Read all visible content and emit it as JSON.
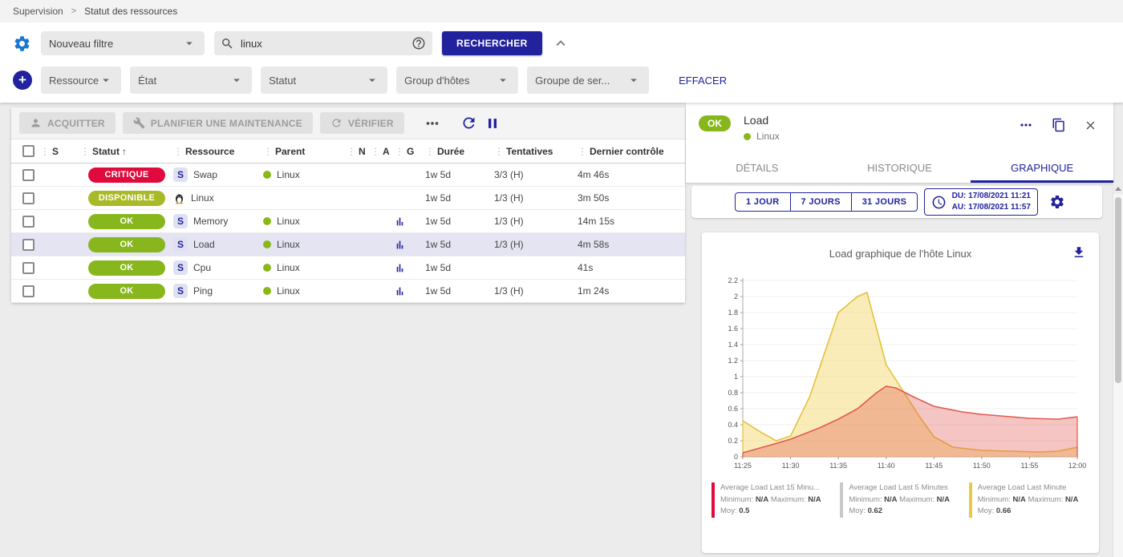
{
  "breadcrumb": {
    "home": "Supervision",
    "current": "Statut des ressources"
  },
  "icons": {
    "plus": "+"
  },
  "filters": {
    "saved_filter": "Nouveau filtre",
    "search_value": "linux",
    "search_button": "RECHERCHER",
    "clear_button": "EFFACER",
    "criteria": [
      "Ressource",
      "État",
      "Statut",
      "Group d'hôtes",
      "Groupe de ser..."
    ]
  },
  "toolbar": {
    "acknowledge": "ACQUITTER",
    "maintenance": "PLANIFIER UNE MAINTENANCE",
    "check": "VÉRIFIER"
  },
  "table": {
    "columns": [
      {
        "label": "S",
        "sorted": false
      },
      {
        "label": "Statut",
        "sorted": true
      },
      {
        "label": "Ressource",
        "sorted": false
      },
      {
        "label": "Parent",
        "sorted": false
      },
      {
        "label": "N",
        "sorted": false
      },
      {
        "label": "A",
        "sorted": false
      },
      {
        "label": "G",
        "sorted": false
      },
      {
        "label": "Durée",
        "sorted": false
      },
      {
        "label": "Tentatives",
        "sorted": false
      },
      {
        "label": "Dernier contrôle",
        "sorted": false
      }
    ],
    "rows": [
      {
        "status": "CRITIQUE",
        "status_color": "#e00b3c",
        "resource": "Swap",
        "icon": "service",
        "parent": "Linux",
        "graph": false,
        "duration": "1w 5d",
        "tries": "3/3 (H)",
        "last_check": "4m 46s",
        "selected": false
      },
      {
        "status": "DISPONIBLE",
        "status_color": "#a9b928",
        "resource": "Linux",
        "icon": "penguin",
        "parent": "",
        "graph": false,
        "duration": "1w 5d",
        "tries": "1/3 (H)",
        "last_check": "3m 50s",
        "selected": false
      },
      {
        "status": "OK",
        "status_color": "#87b71c",
        "resource": "Memory",
        "icon": "service",
        "parent": "Linux",
        "graph": true,
        "duration": "1w 5d",
        "tries": "1/3 (H)",
        "last_check": "14m 15s",
        "selected": false
      },
      {
        "status": "OK",
        "status_color": "#87b71c",
        "resource": "Load",
        "icon": "service",
        "parent": "Linux",
        "graph": true,
        "duration": "1w 5d",
        "tries": "1/3 (H)",
        "last_check": "4m 58s",
        "selected": true
      },
      {
        "status": "OK",
        "status_color": "#87b71c",
        "resource": "Cpu",
        "icon": "service",
        "parent": "Linux",
        "graph": true,
        "duration": "1w 5d",
        "tries": "",
        "last_check": "41s",
        "selected": false
      },
      {
        "status": "OK",
        "status_color": "#87b71c",
        "resource": "Ping",
        "icon": "service",
        "parent": "Linux",
        "graph": true,
        "duration": "1w 5d",
        "tries": "1/3 (H)",
        "last_check": "1m 24s",
        "selected": false
      }
    ]
  },
  "panel": {
    "status": "OK",
    "status_color": "#87b71c",
    "title": "Load",
    "host": "Linux",
    "tabs": [
      "DÉTAILS",
      "HISTORIQUE",
      "GRAPHIQUE"
    ],
    "active_tab": "GRAPHIQUE",
    "ranges": [
      "1 JOUR",
      "7 JOURS",
      "31 JOURS"
    ],
    "from": "DU: 17/08/2021 11:21",
    "to": "AU: 17/08/2021 11:57"
  },
  "theme": {
    "accent": "#22229e",
    "ok_green": "#87b71c",
    "critical_red": "#e00b3c",
    "up_green": "#a9b928"
  },
  "chart_data": {
    "type": "area",
    "title": "Load graphique de l'hôte Linux",
    "ylim": [
      0,
      2.2
    ],
    "ytick_step": 0.2,
    "grid": true,
    "legend_position": "bottom",
    "x_ticks": [
      "11:25",
      "11:30",
      "11:35",
      "11:40",
      "11:45",
      "11:50",
      "11:55",
      "12:00"
    ],
    "x_range_minutes": [
      0,
      35
    ],
    "series": [
      {
        "name": "Average Load Last Minute",
        "color": "#e3c23e",
        "fill": "rgba(246,223,138,0.6)",
        "min": "N/A",
        "max": "N/A",
        "avg": 0.66,
        "points": [
          [
            0,
            0.45
          ],
          [
            2,
            0.3
          ],
          [
            3.5,
            0.2
          ],
          [
            5,
            0.26
          ],
          [
            7,
            0.75
          ],
          [
            10,
            1.8
          ],
          [
            12,
            2.0
          ],
          [
            13,
            2.05
          ],
          [
            15,
            1.15
          ],
          [
            17,
            0.78
          ],
          [
            18.5,
            0.5
          ],
          [
            20,
            0.25
          ],
          [
            22,
            0.12
          ],
          [
            25,
            0.08
          ],
          [
            28,
            0.07
          ],
          [
            31,
            0.06
          ],
          [
            33,
            0.07
          ],
          [
            35,
            0.12
          ]
        ]
      },
      {
        "name": "Average Load Last 5 Minutes",
        "color": "#c9c9c9",
        "fill": "rgba(200,200,200,0.3)",
        "min": "N/A",
        "max": "N/A",
        "avg": 0.62,
        "points": []
      },
      {
        "name": "Average Load Last 15 Minutes",
        "color": "#e05a4f",
        "fill": "rgba(224,90,79,0.35)",
        "min": "N/A",
        "max": "N/A",
        "avg": 0.5,
        "points": [
          [
            0,
            0.05
          ],
          [
            3,
            0.15
          ],
          [
            5,
            0.22
          ],
          [
            8,
            0.36
          ],
          [
            10,
            0.47
          ],
          [
            12,
            0.6
          ],
          [
            14,
            0.8
          ],
          [
            15,
            0.88
          ],
          [
            16,
            0.86
          ],
          [
            18,
            0.74
          ],
          [
            20,
            0.63
          ],
          [
            23,
            0.56
          ],
          [
            25,
            0.53
          ],
          [
            28,
            0.5
          ],
          [
            30,
            0.48
          ],
          [
            33,
            0.47
          ],
          [
            35,
            0.5
          ]
        ]
      }
    ],
    "legend": [
      {
        "label": "Average Load Last 15 Minu...",
        "color": "#e00b3c",
        "min_label": "Minimum:",
        "min": "N/A",
        "max_label": "Maximum:",
        "max": "N/A",
        "avg_label": "Moy:",
        "avg": "0.5"
      },
      {
        "label": "Average Load Last 5 Minutes",
        "color": "#c9c9c9",
        "min_label": "Minimum:",
        "min": "N/A",
        "max_label": "Maximum:",
        "max": "N/A",
        "avg_label": "Moy:",
        "avg": "0.62"
      },
      {
        "label": "Average Load Last Minute",
        "color": "#e8c944",
        "min_label": "Minimum:",
        "min": "N/A",
        "max_label": "Maximum:",
        "max": "N/A",
        "avg_label": "Moy:",
        "avg": "0.66"
      }
    ]
  }
}
